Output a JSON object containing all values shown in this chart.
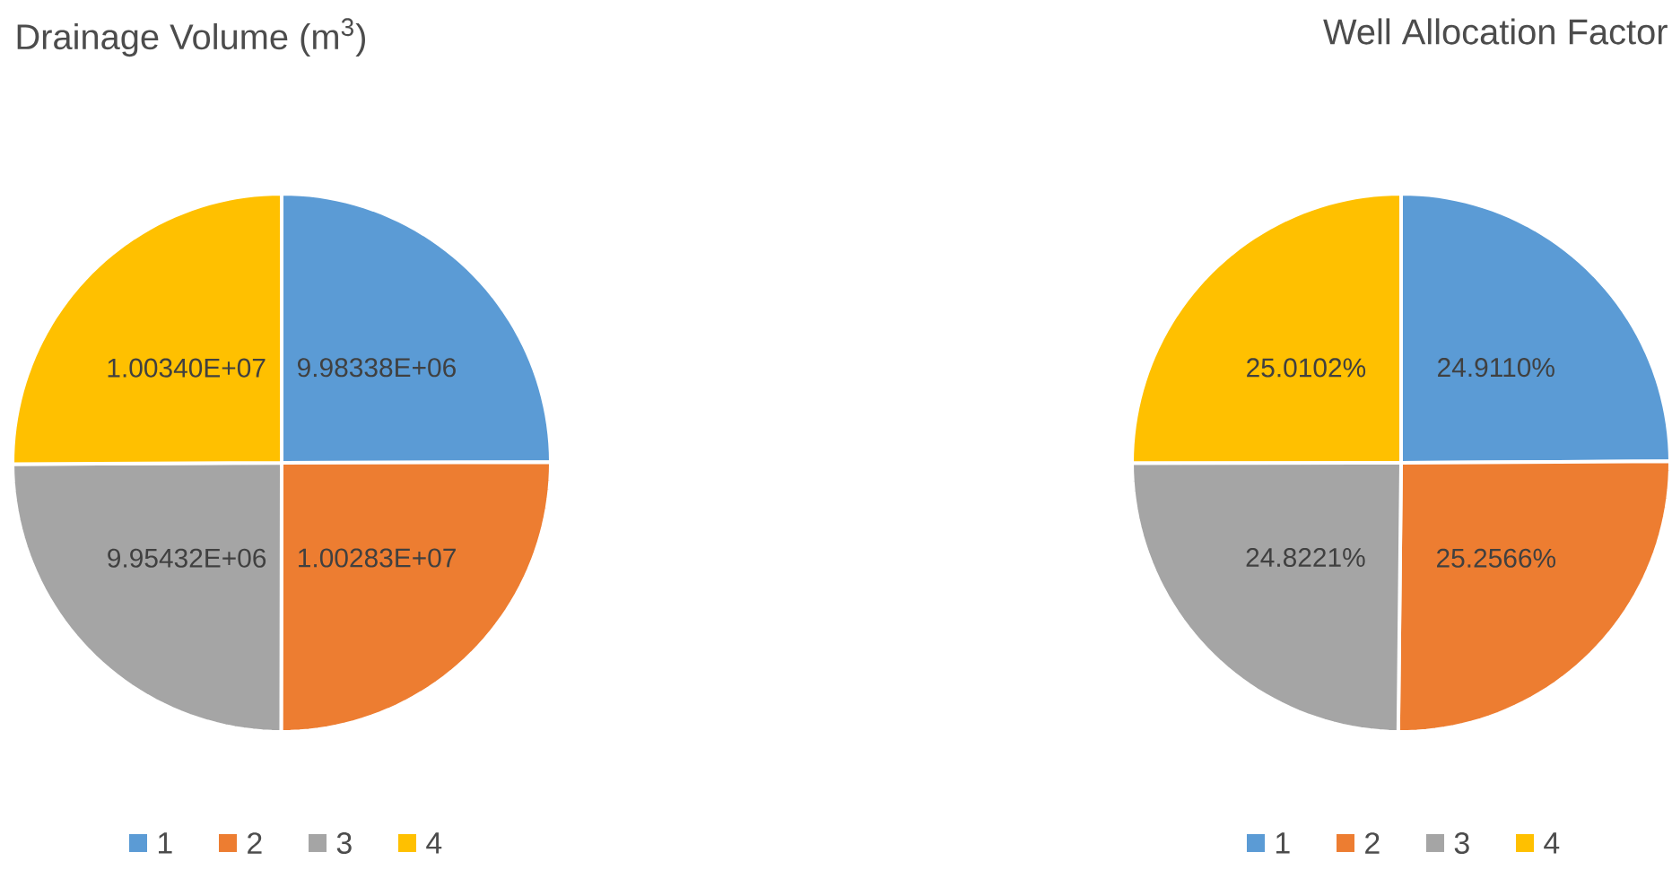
{
  "chart_data": [
    {
      "type": "pie",
      "title": "Drainage Volume (m$^{3}$)",
      "categories": [
        "1",
        "2",
        "3",
        "4"
      ],
      "values": [
        9983380,
        10028300,
        9954320,
        10034000
      ],
      "colors": [
        "#5b9bd5",
        "#ed7d31",
        "#a5a5a5",
        "#ffc000"
      ],
      "value_labels": [
        "9.98338E+06",
        "1.00283E+07",
        "9.95432E+06",
        "1.00340E+07"
      ],
      "legend": "bottom"
    },
    {
      "type": "pie",
      "title": "Well Allocation Factor",
      "categories": [
        "1",
        "2",
        "3",
        "4"
      ],
      "values": [
        24.911,
        25.2566,
        24.8221,
        25.0102
      ],
      "colors": [
        "#5b9bd5",
        "#ed7d31",
        "#a5a5a5",
        "#ffc000"
      ],
      "value_labels": [
        "24.9110%",
        "25.2566%",
        "24.8221%",
        "25.0102%"
      ],
      "legend": "bottom"
    }
  ]
}
